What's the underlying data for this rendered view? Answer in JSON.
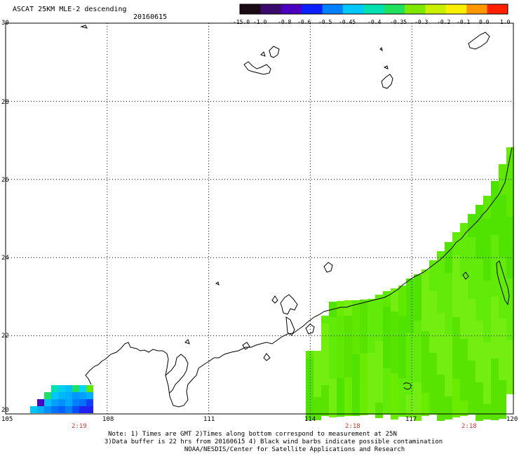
{
  "header": {
    "title": "ASCAT 25KM MLE-2 descending",
    "date": "20160615"
  },
  "colorbar": {
    "labels": [
      "-15.0",
      "-1.0",
      "-0.8",
      "-0.6",
      "-0.5",
      "-0.45",
      "-0.4",
      "-0.35",
      "-0.3",
      "-0.2",
      "-0.1",
      "0.0",
      "1.0"
    ],
    "colors": [
      "#1a0a14",
      "#3a0a6a",
      "#4b00c0",
      "#0a20ff",
      "#0080ff",
      "#00c8ff",
      "#00e0b0",
      "#20e060",
      "#80e800",
      "#c8f000",
      "#f8f000",
      "#ff9800",
      "#ff2000"
    ]
  },
  "axes": {
    "lat_labels": [
      "30",
      "28",
      "26",
      "24",
      "22",
      "20"
    ],
    "lon_labels": [
      "105",
      "108",
      "111",
      "114",
      "117",
      "120"
    ],
    "lat_range": [
      20,
      30
    ],
    "lon_range": [
      105,
      120
    ],
    "grid": true
  },
  "pass_times": [
    "2:19",
    "2:18",
    "2:18"
  ],
  "notes": [
    "Note: 1) Times are GMT 2)Times along bottom correspond to measurement at 25N",
    "3)Data buffer is 22 hrs from 20160615 4) Black wind barbs indicate possible contamination",
    "NOAA/NESDIS/Center for Satellite Applications and Research"
  ]
}
